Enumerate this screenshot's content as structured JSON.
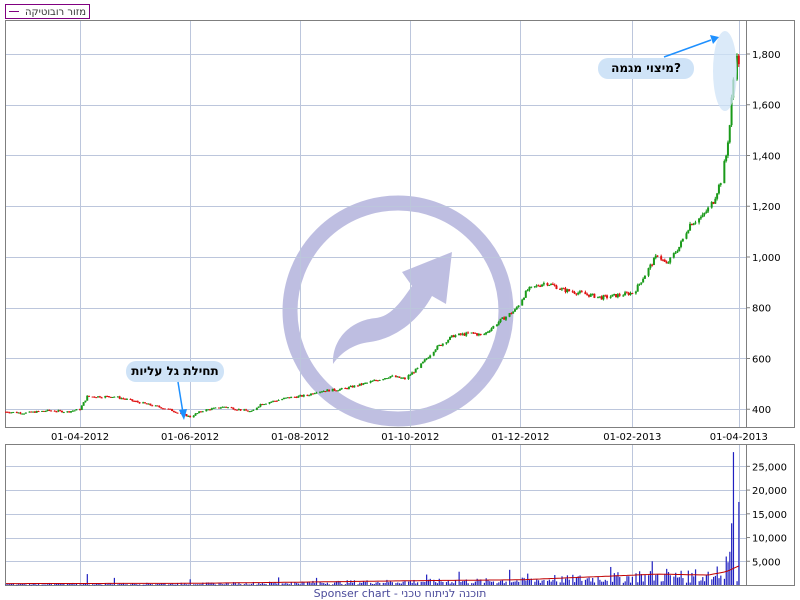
{
  "legend": {
    "label": "מזור רובוטיקה",
    "color": "#800080"
  },
  "footer": {
    "text": "Sponser chart - תוכנה לניתוח טכני"
  },
  "annotations": [
    {
      "id": "wave-start",
      "text": "תחילת גל עליות",
      "target_date": "2012-06-01",
      "target_price": 360
    },
    {
      "id": "magma-peak",
      "text": "מיצוי מגמה?",
      "target_date": "2013-03-30",
      "target_price": 1890
    }
  ],
  "colors": {
    "up": "#1a9a1a",
    "down": "#e01010",
    "volume": "#2020c0",
    "volume_avg": "#c00000",
    "grid": "#bcc6dc",
    "bubble": "#cfe3f7",
    "arrow": "#1e90ff",
    "watermark": "#b8b8de"
  },
  "chart_data": [
    {
      "type": "candlestick",
      "title": "",
      "xlim": [
        "2012-02-20",
        "2013-04-05"
      ],
      "ylim": [
        330,
        1930
      ],
      "grid": true,
      "y_side": "right",
      "x_ticks": [
        "2012-04-01",
        "2012-06-01",
        "2012-08-01",
        "2012-10-01",
        "2012-12-01",
        "2013-02-01",
        "2013-04-01"
      ],
      "x_tick_labels": [
        "01-04-2012",
        "01-06-2012",
        "01-08-2012",
        "01-10-2012",
        "01-12-2012",
        "01-02-2013",
        "01-04-2013"
      ],
      "y_ticks": [
        400,
        600,
        800,
        1000,
        1200,
        1400,
        1600,
        1800
      ],
      "y_tick_labels": [
        "400",
        "600",
        "800",
        "1,000",
        "1,200",
        "1,400",
        "1,600",
        "1,800"
      ],
      "price_path": [
        [
          "2012-02-20",
          390
        ],
        [
          "2012-03-01",
          385
        ],
        [
          "2012-03-15",
          395
        ],
        [
          "2012-03-25",
          390
        ],
        [
          "2012-04-01",
          400
        ],
        [
          "2012-04-05",
          450
        ],
        [
          "2012-04-20",
          450
        ],
        [
          "2012-05-05",
          425
        ],
        [
          "2012-05-20",
          400
        ],
        [
          "2012-06-01",
          370
        ],
        [
          "2012-06-08",
          395
        ],
        [
          "2012-06-20",
          410
        ],
        [
          "2012-07-05",
          390
        ],
        [
          "2012-07-10",
          420
        ],
        [
          "2012-07-25",
          445
        ],
        [
          "2012-08-05",
          455
        ],
        [
          "2012-08-10",
          470
        ],
        [
          "2012-08-25",
          480
        ],
        [
          "2012-09-05",
          500
        ],
        [
          "2012-09-20",
          530
        ],
        [
          "2012-09-28",
          520
        ],
        [
          "2012-10-05",
          560
        ],
        [
          "2012-10-15",
          640
        ],
        [
          "2012-10-25",
          690
        ],
        [
          "2012-11-05",
          700
        ],
        [
          "2012-11-10",
          690
        ],
        [
          "2012-11-20",
          750
        ],
        [
          "2012-11-28",
          790
        ],
        [
          "2012-12-05",
          870
        ],
        [
          "2012-12-15",
          900
        ],
        [
          "2012-12-25",
          870
        ],
        [
          "2013-01-05",
          855
        ],
        [
          "2013-01-15",
          840
        ],
        [
          "2013-01-25",
          850
        ],
        [
          "2013-02-02",
          860
        ],
        [
          "2013-02-08",
          930
        ],
        [
          "2013-02-15",
          1010
        ],
        [
          "2013-02-20",
          970
        ],
        [
          "2013-02-27",
          1040
        ],
        [
          "2013-03-05",
          1130
        ],
        [
          "2013-03-12",
          1160
        ],
        [
          "2013-03-18",
          1220
        ],
        [
          "2013-03-22",
          1300
        ],
        [
          "2013-03-25",
          1400
        ],
        [
          "2013-03-27",
          1520
        ],
        [
          "2013-03-28",
          1620
        ],
        [
          "2013-03-29",
          1700
        ],
        [
          "2013-03-30",
          1870
        ],
        [
          "2013-04-01",
          1750
        ]
      ]
    },
    {
      "type": "bar",
      "title": "",
      "xlim": [
        "2012-02-20",
        "2013-04-05"
      ],
      "ylim": [
        0,
        29500
      ],
      "grid": true,
      "y_side": "right",
      "y_ticks": [
        5000,
        10000,
        15000,
        20000,
        25000
      ],
      "y_tick_labels": [
        "5,000",
        "10,000",
        "15,000",
        "20,000",
        "25,000"
      ],
      "spikes": [
        [
          "2012-04-05",
          2300
        ],
        [
          "2012-04-20",
          1500
        ],
        [
          "2012-06-01",
          1200
        ],
        [
          "2012-07-20",
          1600
        ],
        [
          "2012-08-10",
          1500
        ],
        [
          "2012-08-25",
          1800
        ],
        [
          "2012-09-01",
          3500
        ],
        [
          "2012-09-15",
          1700
        ],
        [
          "2012-10-10",
          2200
        ],
        [
          "2012-10-20",
          3800
        ],
        [
          "2012-10-28",
          2800
        ],
        [
          "2012-11-10",
          2600
        ],
        [
          "2012-11-25",
          3200
        ],
        [
          "2012-12-05",
          2400
        ],
        [
          "2012-12-20",
          2100
        ],
        [
          "2013-01-05",
          5200
        ],
        [
          "2013-01-12",
          3100
        ],
        [
          "2013-01-20",
          3800
        ],
        [
          "2013-02-05",
          2900
        ],
        [
          "2013-02-12",
          5000
        ],
        [
          "2013-02-20",
          3400
        ],
        [
          "2013-02-28",
          3000
        ],
        [
          "2013-03-08",
          3300
        ],
        [
          "2013-03-15",
          2800
        ],
        [
          "2013-03-20",
          3900
        ],
        [
          "2013-03-23",
          5200
        ],
        [
          "2013-03-25",
          6000
        ],
        [
          "2013-03-26",
          4800
        ],
        [
          "2013-03-27",
          7000
        ],
        [
          "2013-03-28",
          13000
        ],
        [
          "2013-03-29",
          28000
        ],
        [
          "2013-03-30",
          11500
        ],
        [
          "2013-04-01",
          17500
        ]
      ],
      "avg_path": [
        [
          "2012-02-20",
          300
        ],
        [
          "2012-06-01",
          350
        ],
        [
          "2012-08-01",
          600
        ],
        [
          "2012-10-01",
          900
        ],
        [
          "2012-12-01",
          1100
        ],
        [
          "2013-01-15",
          1800
        ],
        [
          "2013-02-15",
          2300
        ],
        [
          "2013-03-15",
          2100
        ],
        [
          "2013-03-25",
          2800
        ],
        [
          "2013-04-01",
          4000
        ]
      ]
    }
  ]
}
